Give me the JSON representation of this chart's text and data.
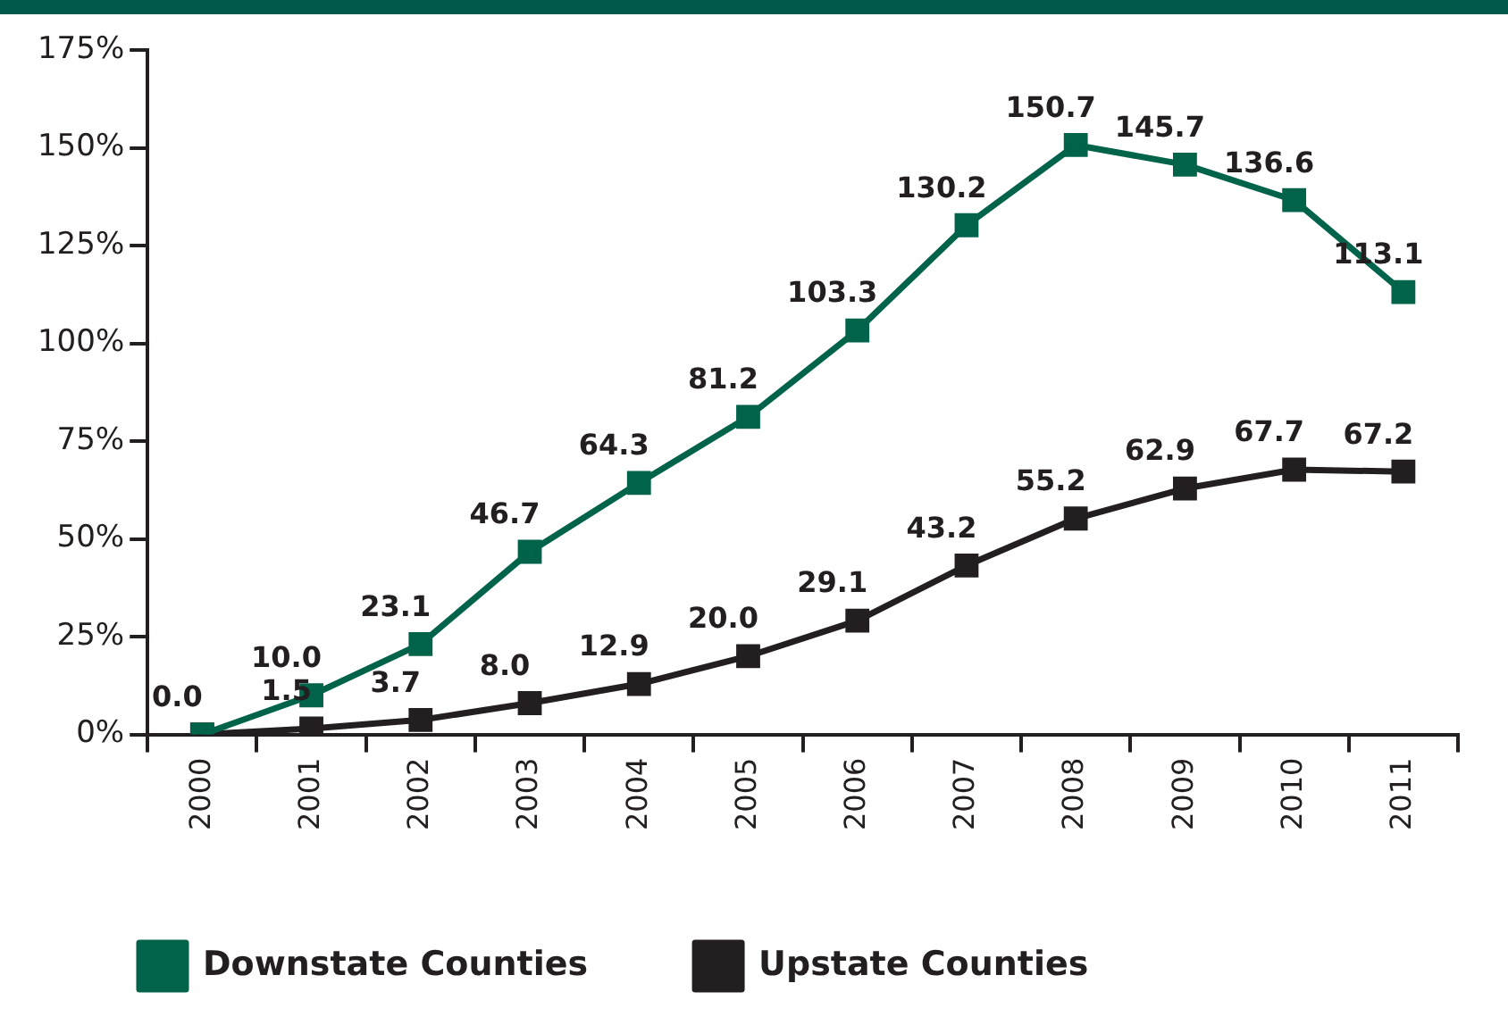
{
  "chart_data": {
    "type": "line",
    "categories": [
      "2000",
      "2001",
      "2002",
      "2003",
      "2004",
      "2005",
      "2006",
      "2007",
      "2008",
      "2009",
      "2010",
      "2011"
    ],
    "series": [
      {
        "name": "Downstate Counties",
        "color": "#00634a",
        "values": [
          0,
          10,
          23.1,
          46.7,
          64.3,
          81.2,
          103.3,
          130.2,
          150.7,
          145.7,
          136.6,
          113.1
        ],
        "value_labels": [
          "0.0",
          "10.0",
          "23.1",
          "46.7",
          "64.3",
          "81.2",
          "103.3",
          "130.2",
          "150.7",
          "145.7",
          "136.6",
          "113.1"
        ]
      },
      {
        "name": "Upstate Counties",
        "color": "#231f20",
        "values": [
          0,
          1.5,
          3.7,
          8,
          12.9,
          20,
          29.1,
          43.2,
          55.2,
          62.9,
          67.7,
          67.2
        ],
        "value_labels": [
          null,
          "1.5",
          "3.7",
          "8.0",
          "12.9",
          "20.0",
          "29.1",
          "43.2",
          "55.2",
          "62.9",
          "67.7",
          "67.2"
        ]
      }
    ],
    "ylim": [
      0,
      175
    ],
    "yticks": [
      {
        "value": 0,
        "label": "0%"
      },
      {
        "value": 25,
        "label": "25%"
      },
      {
        "value": 50,
        "label": "50%"
      },
      {
        "value": 75,
        "label": "75%"
      },
      {
        "value": 100,
        "label": "100%"
      },
      {
        "value": 125,
        "label": "125%"
      },
      {
        "value": 150,
        "label": "150%"
      },
      {
        "value": 175,
        "label": "175%"
      }
    ],
    "grid": false,
    "legend": "bottom",
    "marker": "square",
    "line_style": "solid"
  }
}
